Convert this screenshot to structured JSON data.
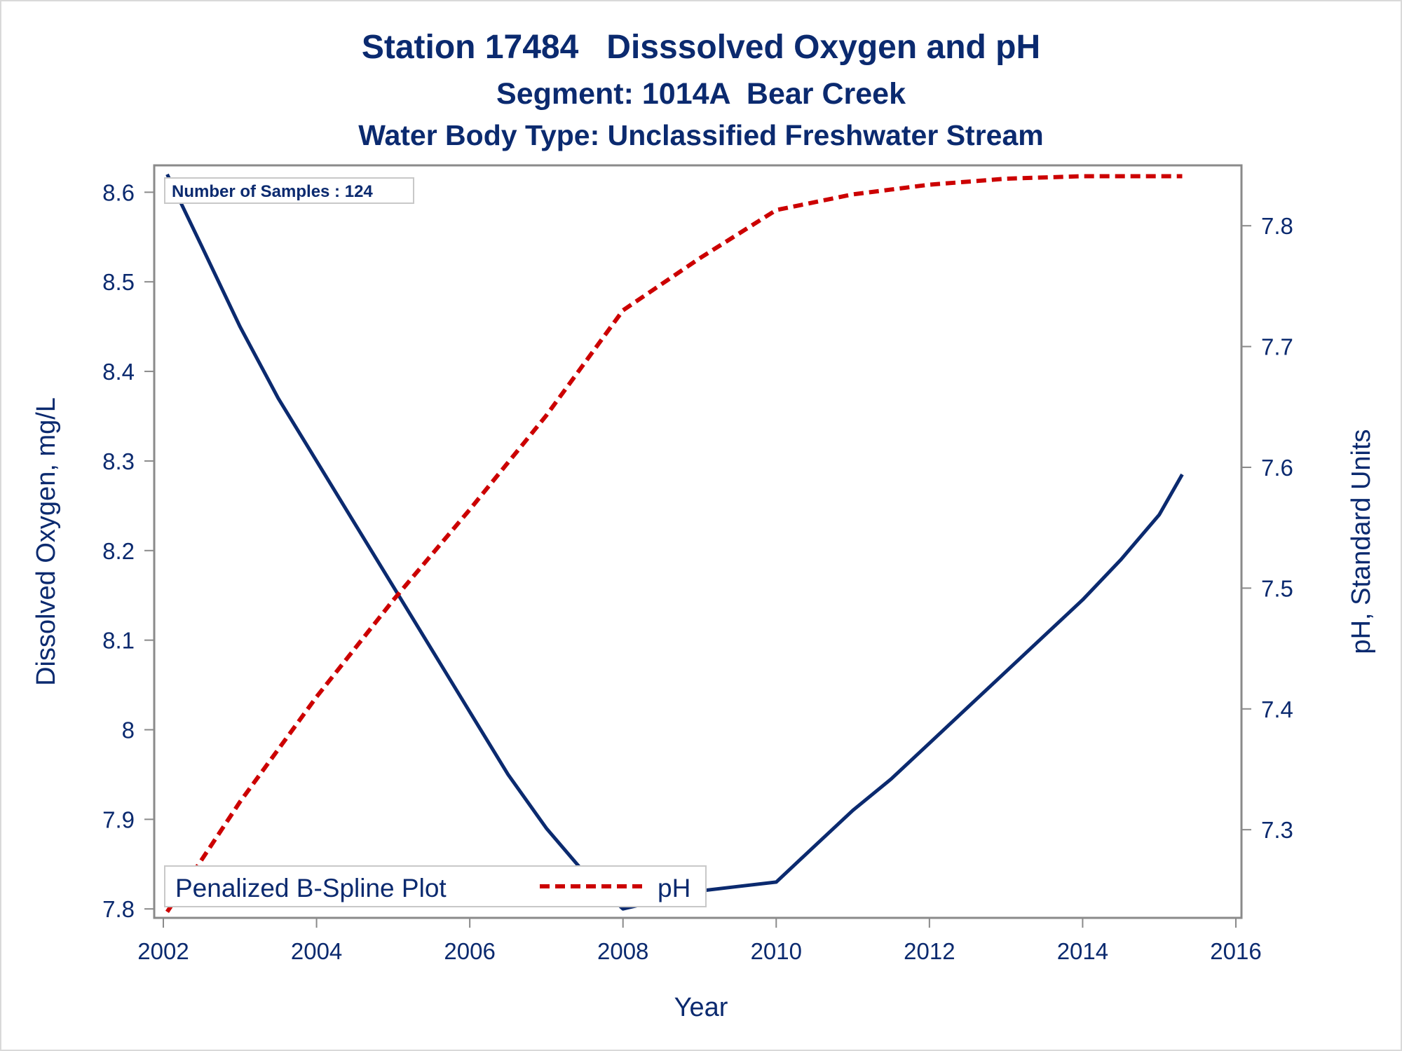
{
  "titles": {
    "line1": "Station 17484   Disssolved Oxygen and pH",
    "line2": "Segment: 1014A  Bear Creek",
    "line3": "Water Body Type: Unclassified Freshwater Stream"
  },
  "inset": {
    "samples_text": "Number of Samples : 124"
  },
  "legend": {
    "title": "Penalized B-Spline Plot",
    "item_label": "pH"
  },
  "colors": {
    "do_line": "#0b2a6f",
    "ph_line": "#cc0000",
    "text": "#0b2a6f",
    "axis": "#8a8a8a"
  },
  "chart_data": {
    "type": "line",
    "xlabel": "Year",
    "ylabel": "Dissolved Oxygen, mg/L",
    "y2label": "pH, Standard Units",
    "xlim": [
      2002,
      2016
    ],
    "ylim": [
      7.79,
      8.63
    ],
    "y2lim": [
      7.227,
      7.85
    ],
    "xticks": [
      "2002",
      "2004",
      "2006",
      "2008",
      "2010",
      "2012",
      "2014",
      "2016"
    ],
    "yticks": [
      "7.8",
      "7.9",
      "8",
      "8.1",
      "8.2",
      "8.3",
      "8.4",
      "8.5",
      "8.6"
    ],
    "y2ticks": [
      "7.3",
      "7.4",
      "7.5",
      "7.6",
      "7.7",
      "7.8"
    ],
    "grid": false,
    "legend_position": "bottom-left inside",
    "series": [
      {
        "axis": "left",
        "style": "solid",
        "x": [
          2002.05,
          2002.5,
          2003.0,
          2003.5,
          2004.0,
          2004.5,
          2005.0,
          2005.5,
          2006.0,
          2006.5,
          2007.0,
          2007.5,
          2008.0,
          2008.5,
          2009.0,
          2009.5,
          2010.0,
          2010.5,
          2011.0,
          2011.5,
          2012.0,
          2012.5,
          2013.0,
          2013.5,
          2014.0,
          2014.5,
          2015.0,
          2015.3
        ],
        "values": [
          8.62,
          8.54,
          8.45,
          8.37,
          8.3,
          8.23,
          8.16,
          8.09,
          8.02,
          7.95,
          7.89,
          7.84,
          7.8,
          7.81,
          7.82,
          7.825,
          7.83,
          7.87,
          7.91,
          7.945,
          7.985,
          8.025,
          8.065,
          8.105,
          8.145,
          8.19,
          8.24,
          8.285
        ]
      },
      {
        "name": "pH",
        "axis": "right",
        "style": "dashed",
        "x": [
          2002.05,
          2003.0,
          2004.0,
          2005.0,
          2006.0,
          2007.0,
          2008.0,
          2009.0,
          2010.0,
          2011.0,
          2012.0,
          2013.0,
          2014.0,
          2015.3
        ],
        "values": [
          7.232,
          7.323,
          7.41,
          7.49,
          7.565,
          7.643,
          7.73,
          7.773,
          7.813,
          7.826,
          7.834,
          7.839,
          7.841,
          7.841
        ]
      }
    ]
  }
}
